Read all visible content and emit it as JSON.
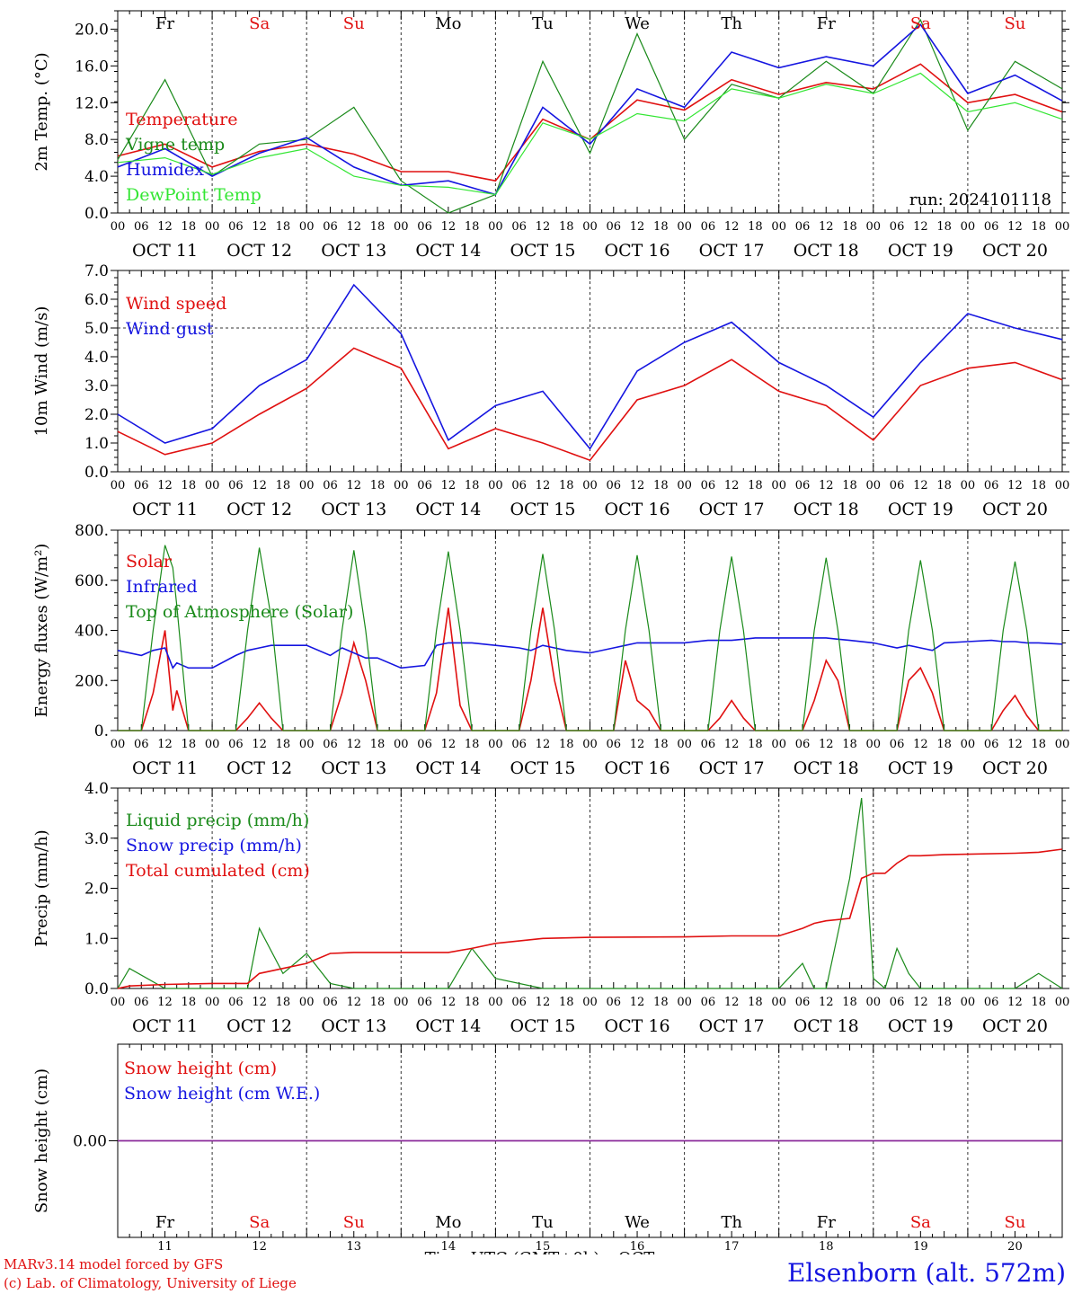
{
  "station": "Elsenborn (alt. 572m)",
  "credits": [
    "MARv3.14 model forced by GFS",
    "(c) Lab. of Climatology, University of Liege"
  ],
  "colors": {
    "red": "#e01010",
    "blue": "#1515e0",
    "green": "#1a8a1a",
    "lightgreen": "#33e633",
    "purple": "#8a2a9a"
  },
  "day_names": [
    "Fr",
    "Sa",
    "Su",
    "Mo",
    "Tu",
    "We",
    "Th",
    "Fr",
    "Sa",
    "Su"
  ],
  "weekend_index": [
    1,
    2,
    8,
    9
  ],
  "date_labels": [
    "OCT 11",
    "OCT 12",
    "OCT 13",
    "OCT 14",
    "OCT 15",
    "OCT 16",
    "OCT 17",
    "OCT 18",
    "OCT 19",
    "OCT 20"
  ],
  "hour_ticks": [
    "00",
    "06",
    "12",
    "18"
  ],
  "day_numbers": [
    "11",
    "12",
    "13",
    "14",
    "15",
    "16",
    "17",
    "18",
    "19",
    "20"
  ],
  "x_axis_title": "Time UTC (GMT+0h)",
  "x_axis_month": "OCT",
  "chart_data": [
    {
      "type": "line",
      "ylabel": "2m Temp. (°C)",
      "ylim": [
        0,
        22
      ],
      "yticks": [
        "0.0",
        "4.0",
        "8.0",
        "12.0",
        "16.0",
        "20.0"
      ],
      "annotation": "run: 2024101118",
      "x_hours": [
        0,
        12,
        24,
        36,
        48,
        60,
        72,
        84,
        96,
        108,
        120,
        132,
        144,
        156,
        168,
        180,
        192,
        204,
        216,
        228,
        240
      ],
      "series": [
        {
          "name": "Temperature",
          "color": "red",
          "values": [
            6.2,
            7.5,
            5.0,
            6.7,
            7.5,
            6.4,
            4.5,
            4.5,
            3.5,
            10.2,
            8.0,
            12.3,
            11.2,
            14.5,
            12.9,
            14.2,
            13.5,
            16.2,
            12.0,
            12.9,
            11.0
          ]
        },
        {
          "name": "Vigne temp",
          "color": "green",
          "values": [
            5.8,
            14.5,
            4.0,
            7.5,
            8.0,
            11.5,
            3.5,
            0.0,
            2.0,
            16.5,
            6.5,
            19.5,
            8.0,
            14.0,
            12.5,
            16.5,
            13.0,
            21.0,
            9.0,
            16.5,
            13.5
          ]
        },
        {
          "name": "Humidex",
          "color": "blue",
          "values": [
            5.0,
            7.0,
            4.0,
            6.5,
            8.2,
            5.0,
            3.0,
            3.5,
            2.0,
            11.5,
            7.5,
            13.5,
            11.5,
            17.5,
            15.8,
            17.0,
            16.0,
            20.5,
            13.0,
            15.0,
            12.2
          ]
        },
        {
          "name": "DewPoint Temp",
          "color": "lightgreen",
          "values": [
            5.5,
            6.0,
            4.2,
            6.0,
            7.0,
            4.0,
            3.0,
            2.8,
            2.0,
            9.8,
            8.0,
            10.8,
            10.0,
            13.5,
            12.5,
            14.0,
            13.0,
            15.2,
            11.0,
            12.0,
            10.2
          ]
        }
      ]
    },
    {
      "type": "line",
      "ylabel": "10m Wind (m/s)",
      "ylim": [
        0,
        7
      ],
      "yticks": [
        "0.0",
        "1.0",
        "2.0",
        "3.0",
        "4.0",
        "5.0",
        "6.0",
        "7.0"
      ],
      "reference_line": 5.0,
      "x_hours": [
        0,
        12,
        24,
        36,
        48,
        60,
        72,
        84,
        96,
        108,
        120,
        132,
        144,
        156,
        168,
        180,
        192,
        204,
        216,
        228,
        240
      ],
      "series": [
        {
          "name": "Wind speed",
          "color": "red",
          "values": [
            1.4,
            0.6,
            1.0,
            2.0,
            2.9,
            4.3,
            3.6,
            0.8,
            1.5,
            1.0,
            0.4,
            2.5,
            3.0,
            3.9,
            2.8,
            2.3,
            1.1,
            3.0,
            3.6,
            3.8,
            3.2
          ]
        },
        {
          "name": "Wind gust",
          "color": "blue",
          "values": [
            2.0,
            1.0,
            1.5,
            3.0,
            3.9,
            6.5,
            4.8,
            1.1,
            2.3,
            2.8,
            0.8,
            3.5,
            4.5,
            5.2,
            3.8,
            3.0,
            1.9,
            3.8,
            5.5,
            5.0,
            4.6
          ]
        }
      ]
    },
    {
      "type": "line",
      "ylabel": "Energy fluxes (W/m²)",
      "ylim": [
        0,
        800
      ],
      "yticks": [
        "0.",
        "200.",
        "400.",
        "600.",
        "800."
      ],
      "x_hours": [
        0,
        6,
        9,
        12,
        14,
        15,
        18,
        24,
        30,
        33,
        36,
        39,
        42,
        48,
        54,
        57,
        60,
        63,
        66,
        72,
        78,
        81,
        84,
        87,
        90,
        96,
        102,
        105,
        108,
        111,
        114,
        120,
        126,
        129,
        132,
        135,
        138,
        144,
        150,
        153,
        156,
        159,
        162,
        168,
        174,
        177,
        180,
        183,
        186,
        192,
        198,
        201,
        204,
        207,
        210,
        216,
        222,
        225,
        228,
        231,
        234,
        240
      ],
      "series": [
        {
          "name": "Solar",
          "color": "red",
          "values": [
            0,
            0,
            150,
            400,
            80,
            160,
            0,
            0,
            0,
            50,
            110,
            50,
            0,
            0,
            0,
            150,
            350,
            200,
            0,
            0,
            0,
            150,
            490,
            100,
            0,
            0,
            0,
            200,
            490,
            200,
            0,
            0,
            0,
            280,
            120,
            80,
            0,
            0,
            0,
            50,
            120,
            50,
            0,
            0,
            0,
            120,
            280,
            200,
            0,
            0,
            0,
            200,
            250,
            150,
            0,
            0,
            0,
            80,
            140,
            60,
            0,
            0
          ]
        },
        {
          "name": "Infrared",
          "color": "blue",
          "values": [
            320,
            300,
            320,
            330,
            250,
            270,
            250,
            250,
            300,
            320,
            330,
            340,
            340,
            340,
            300,
            330,
            310,
            290,
            290,
            250,
            260,
            340,
            350,
            350,
            350,
            340,
            330,
            320,
            340,
            330,
            320,
            310,
            330,
            340,
            350,
            350,
            350,
            350,
            360,
            360,
            360,
            365,
            370,
            370,
            370,
            370,
            370,
            365,
            360,
            350,
            330,
            340,
            330,
            320,
            350,
            355,
            360,
            355,
            355,
            350,
            350,
            345
          ]
        },
        {
          "name": "Top of Atmosphere (Solar)",
          "color": "green",
          "values": [
            0,
            0,
            400,
            740,
            650,
            500,
            0,
            0,
            0,
            400,
            730,
            450,
            0,
            0,
            0,
            400,
            720,
            400,
            0,
            0,
            0,
            400,
            715,
            400,
            0,
            0,
            0,
            400,
            705,
            400,
            0,
            0,
            0,
            400,
            700,
            400,
            0,
            0,
            0,
            400,
            695,
            400,
            0,
            0,
            0,
            400,
            690,
            400,
            0,
            0,
            0,
            400,
            680,
            400,
            0,
            0,
            0,
            400,
            675,
            400,
            0,
            0
          ]
        }
      ]
    },
    {
      "type": "line",
      "ylabel": "Precip (mm/h)",
      "ylim": [
        0,
        4
      ],
      "yticks": [
        "0.0",
        "1.0",
        "2.0",
        "3.0",
        "4.0"
      ],
      "x_hours": [
        0,
        3,
        12,
        24,
        33,
        36,
        42,
        48,
        54,
        60,
        72,
        84,
        90,
        96,
        108,
        120,
        144,
        156,
        168,
        174,
        177,
        180,
        186,
        189,
        192,
        195,
        198,
        201,
        204,
        210,
        216,
        228,
        234,
        240
      ],
      "series": [
        {
          "name": "Liquid precip (mm/h)",
          "color": "green",
          "values": [
            0.0,
            0.4,
            0.0,
            0.0,
            0.0,
            1.2,
            0.3,
            0.7,
            0.1,
            0.0,
            0.0,
            0.0,
            0.8,
            0.2,
            0.0,
            0.0,
            0.0,
            0.0,
            0.0,
            0.5,
            0.0,
            0.0,
            2.2,
            3.8,
            0.2,
            0.0,
            0.8,
            0.3,
            0.0,
            0.0,
            0.0,
            0.0,
            0.3,
            0.0
          ]
        },
        {
          "name": "Snow precip (mm/h)",
          "color": "blue",
          "values": []
        },
        {
          "name": "Total cumulated (cm)",
          "color": "red",
          "values": [
            0.0,
            0.05,
            0.08,
            0.1,
            0.1,
            0.3,
            0.4,
            0.5,
            0.7,
            0.72,
            0.72,
            0.72,
            0.8,
            0.9,
            1.0,
            1.02,
            1.03,
            1.05,
            1.05,
            1.2,
            1.3,
            1.35,
            1.4,
            2.2,
            2.3,
            2.3,
            2.5,
            2.65,
            2.65,
            2.67,
            2.68,
            2.7,
            2.72,
            2.78
          ]
        }
      ]
    },
    {
      "type": "line",
      "ylabel": "Snow height (cm)",
      "ylim": [
        -1,
        1
      ],
      "yticks": [
        "0.00"
      ],
      "x_hours": [
        0,
        240
      ],
      "series": [
        {
          "name": "Snow height (cm)",
          "color": "red",
          "values": [
            0,
            0
          ]
        },
        {
          "name": "Snow height (cm W.E.)",
          "color": "blue",
          "values": [
            0,
            0
          ]
        }
      ]
    }
  ]
}
